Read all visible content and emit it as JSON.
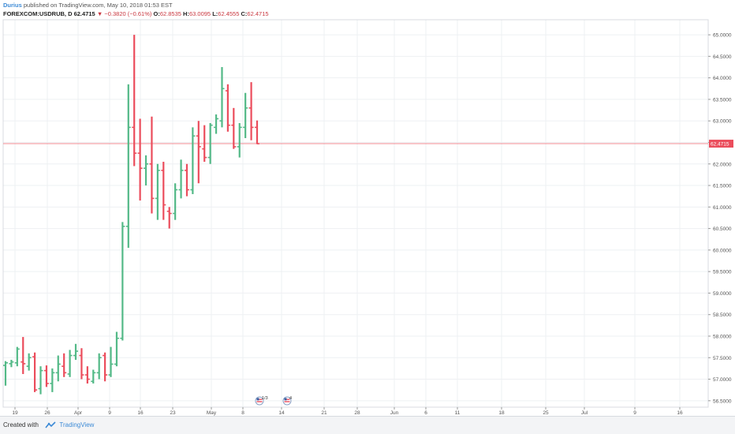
{
  "header": {
    "author": "Durius",
    "published_text": "published on TradingView.com, May 10, 2018 01:53 EST",
    "symbol_line": "FOREXCOM:USDRUB, D",
    "last_price": "62.4715",
    "change_arrow": "▼",
    "change": "−0.3820 (−0.61%)",
    "o_label": "O:",
    "o_value": "62.8535",
    "h_label": "H:",
    "h_value": "63.0095",
    "l_label": "L:",
    "l_value": "62.4555",
    "c_label": "C:",
    "c_value": "62.4715"
  },
  "footer": {
    "created_with": "Created with",
    "brand": "TradingView"
  },
  "colors": {
    "up": "#53b987",
    "down": "#eb4d5c",
    "price_line": "#f28b93",
    "price_tag_bg": "#eb4d5c",
    "grid": "#eef0f3",
    "axis_text": "#555555"
  },
  "events": [
    {
      "label": "1/3",
      "icon": "us-flag-icon"
    },
    {
      "label": "4",
      "icon": "us-flag-icon"
    }
  ],
  "chart_data": {
    "type": "ohlc-bar",
    "symbol": "FOREXCOM:USDRUB",
    "interval": "D",
    "ylim": [
      56.35,
      65.35
    ],
    "y_ticks": [
      "65.0000",
      "64.5000",
      "64.0000",
      "63.5000",
      "63.0000",
      "62.5000",
      "62.0000",
      "61.5000",
      "61.0000",
      "60.5000",
      "60.0000",
      "59.5000",
      "59.0000",
      "58.5000",
      "58.0000",
      "57.5000",
      "57.0000",
      "56.5000"
    ],
    "x_tick_labels": [
      "19",
      "26",
      "Apr",
      "9",
      "16",
      "23",
      "May",
      "8",
      "14",
      "21",
      "28",
      "Jun",
      "6",
      "11",
      "18",
      "25",
      "Jul",
      "9",
      "16"
    ],
    "current_price_label": "62.4715",
    "bars": [
      {
        "o": 57.32,
        "h": 57.42,
        "l": 56.85,
        "c": 57.38
      },
      {
        "o": 57.36,
        "h": 57.45,
        "l": 57.28,
        "c": 57.4
      },
      {
        "o": 57.38,
        "h": 57.75,
        "l": 57.3,
        "c": 57.7
      },
      {
        "o": 57.4,
        "h": 57.98,
        "l": 57.12,
        "c": 57.36
      },
      {
        "o": 57.3,
        "h": 57.6,
        "l": 57.2,
        "c": 57.5
      },
      {
        "o": 57.52,
        "h": 57.62,
        "l": 56.7,
        "c": 56.75
      },
      {
        "o": 56.78,
        "h": 57.3,
        "l": 56.65,
        "c": 57.2
      },
      {
        "o": 57.2,
        "h": 57.32,
        "l": 56.82,
        "c": 56.9
      },
      {
        "o": 56.9,
        "h": 57.25,
        "l": 56.7,
        "c": 57.15
      },
      {
        "o": 57.15,
        "h": 57.55,
        "l": 56.95,
        "c": 57.35
      },
      {
        "o": 57.3,
        "h": 57.6,
        "l": 57.05,
        "c": 57.15
      },
      {
        "o": 57.12,
        "h": 57.68,
        "l": 57.05,
        "c": 57.55
      },
      {
        "o": 57.55,
        "h": 57.82,
        "l": 57.45,
        "c": 57.65
      },
      {
        "o": 57.55,
        "h": 57.72,
        "l": 57.0,
        "c": 57.1
      },
      {
        "o": 57.1,
        "h": 57.3,
        "l": 56.9,
        "c": 57.0
      },
      {
        "o": 56.95,
        "h": 57.22,
        "l": 56.9,
        "c": 57.15
      },
      {
        "o": 57.15,
        "h": 57.6,
        "l": 57.0,
        "c": 57.5
      },
      {
        "o": 57.55,
        "h": 57.62,
        "l": 56.95,
        "c": 57.1
      },
      {
        "o": 57.1,
        "h": 57.75,
        "l": 57.05,
        "c": 57.35
      },
      {
        "o": 57.35,
        "h": 58.1,
        "l": 57.3,
        "c": 57.95
      },
      {
        "o": 57.95,
        "h": 60.65,
        "l": 57.9,
        "c": 60.55
      },
      {
        "o": 60.55,
        "h": 63.85,
        "l": 60.05,
        "c": 62.85
      },
      {
        "o": 62.85,
        "h": 65.0,
        "l": 61.95,
        "c": 62.25
      },
      {
        "o": 62.25,
        "h": 63.05,
        "l": 61.15,
        "c": 61.9
      },
      {
        "o": 61.9,
        "h": 62.2,
        "l": 61.5,
        "c": 62.0
      },
      {
        "o": 62.0,
        "h": 63.1,
        "l": 60.85,
        "c": 61.2
      },
      {
        "o": 61.2,
        "h": 62.0,
        "l": 60.7,
        "c": 61.85
      },
      {
        "o": 61.85,
        "h": 62.05,
        "l": 60.7,
        "c": 61.05
      },
      {
        "o": 60.9,
        "h": 61.0,
        "l": 60.5,
        "c": 60.85
      },
      {
        "o": 60.85,
        "h": 61.55,
        "l": 60.7,
        "c": 61.4
      },
      {
        "o": 61.4,
        "h": 62.1,
        "l": 61.2,
        "c": 61.85
      },
      {
        "o": 61.85,
        "h": 62.0,
        "l": 61.25,
        "c": 61.4
      },
      {
        "o": 61.4,
        "h": 62.85,
        "l": 61.3,
        "c": 62.65
      },
      {
        "o": 62.65,
        "h": 63.0,
        "l": 61.55,
        "c": 62.4
      },
      {
        "o": 62.35,
        "h": 62.9,
        "l": 62.05,
        "c": 62.15
      },
      {
        "o": 62.15,
        "h": 62.95,
        "l": 62.0,
        "c": 62.9
      },
      {
        "o": 62.85,
        "h": 63.15,
        "l": 62.7,
        "c": 63.05
      },
      {
        "o": 63.0,
        "h": 64.25,
        "l": 62.85,
        "c": 63.75
      },
      {
        "o": 63.7,
        "h": 63.85,
        "l": 62.75,
        "c": 62.9
      },
      {
        "o": 62.9,
        "h": 63.3,
        "l": 62.35,
        "c": 62.4
      },
      {
        "o": 62.4,
        "h": 62.95,
        "l": 62.15,
        "c": 62.85
      },
      {
        "o": 62.85,
        "h": 63.65,
        "l": 62.6,
        "c": 63.3
      },
      {
        "o": 63.3,
        "h": 63.9,
        "l": 62.55,
        "c": 62.85
      },
      {
        "o": 62.85,
        "h": 63.01,
        "l": 62.46,
        "c": 62.47
      }
    ]
  }
}
